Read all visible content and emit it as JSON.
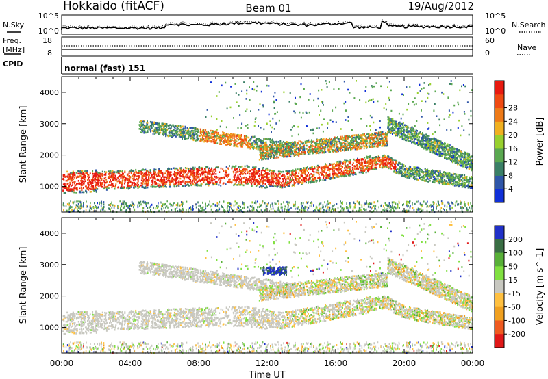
{
  "header": {
    "station": "Hokkaido (fitACF)",
    "beam": "Beam 01",
    "date": "19/Aug/2012"
  },
  "panels": {
    "nsky": {
      "label": "N.Sky",
      "right_label": "N.Search",
      "left_ticks": [
        "10^5",
        "10^0"
      ],
      "right_ticks": [
        "10^5",
        "10^0"
      ]
    },
    "freq": {
      "label_line1": "Freq.",
      "label_line2": "[MHz]",
      "right_label": "Nave",
      "left_ticks": [
        "18",
        "8"
      ],
      "right_ticks": [
        "60",
        "0"
      ]
    },
    "cpid": {
      "label": "CPID",
      "text": "normal (fast) 151"
    }
  },
  "colors": {
    "power": [
      "#1030d8",
      "#2f56a8",
      "#3a7f66",
      "#5aa850",
      "#98d02e",
      "#f0b020",
      "#ee7a18",
      "#f04a12",
      "#e81a10"
    ],
    "velocity": [
      "#2030c8",
      "#3a6e44",
      "#58b038",
      "#80e040",
      "#c8c8c0",
      "#ffc040",
      "#f0a020",
      "#ef5a20",
      "#e01818"
    ],
    "ground_scatter": "#c8c8c0"
  },
  "chart_data": [
    {
      "type": "heatmap",
      "name": "power",
      "ylabel": "Slant Range [km]",
      "xlim": [
        "00:00",
        "24:00"
      ],
      "ylim": [
        180,
        4500
      ],
      "yticks": [
        "1000",
        "2000",
        "3000",
        "4000"
      ],
      "colorbar_label": "Power [dB]",
      "colorbar_ticks": [
        "4",
        "8",
        "12",
        "16",
        "20",
        "24",
        "28"
      ],
      "colorbar_range": [
        0,
        32
      ]
    },
    {
      "type": "heatmap",
      "name": "velocity",
      "ylabel": "Slant Range [km]",
      "xlabel": "Time UT",
      "xlim": [
        "00:00",
        "24:00"
      ],
      "ylim": [
        180,
        4500
      ],
      "yticks": [
        "1000",
        "2000",
        "3000",
        "4000"
      ],
      "xticks": [
        "00:00",
        "04:00",
        "08:00",
        "12:00",
        "16:00",
        "20:00",
        "00:00"
      ],
      "colorbar_label": "Velocity [m s^-1]",
      "colorbar_ticks": [
        "200",
        "100",
        "50",
        "15",
        "-15",
        "-50",
        "-100",
        "-200"
      ]
    }
  ]
}
